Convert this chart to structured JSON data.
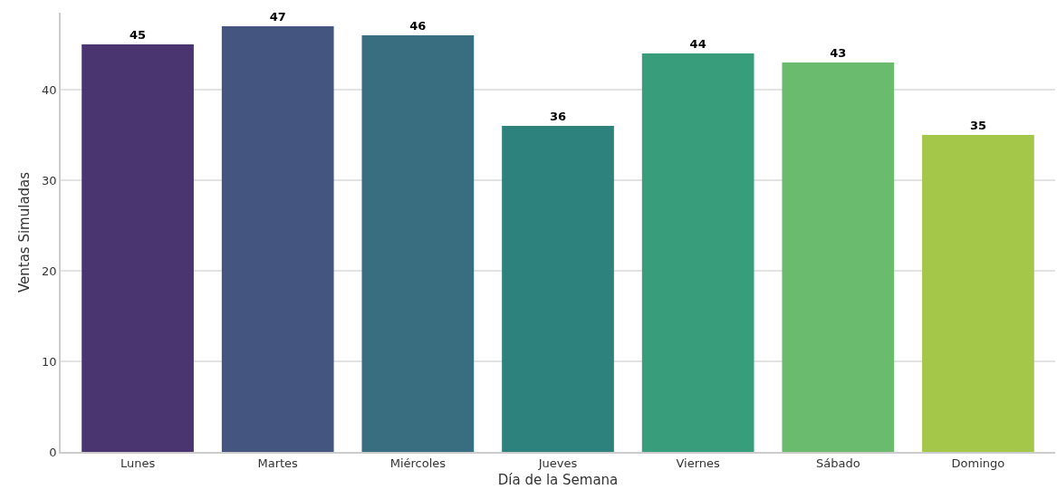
{
  "chart_data": {
    "type": "bar",
    "xlabel": "Día de la Semana",
    "ylabel": "Ventas Simuladas",
    "categories": [
      "Lunes",
      "Martes",
      "Miércoles",
      "Jueves",
      "Viernes",
      "Sábado",
      "Domingo"
    ],
    "values": [
      45,
      47,
      46,
      36,
      44,
      43,
      35
    ],
    "colors": [
      "#4a3570",
      "#44567f",
      "#396d80",
      "#2e827d",
      "#389d7b",
      "#6abb6d",
      "#a4c74a"
    ],
    "ylim": [
      0,
      48.5
    ],
    "yticks": [
      0,
      10,
      20,
      30,
      40
    ],
    "grid": "y",
    "data_labels": true
  }
}
